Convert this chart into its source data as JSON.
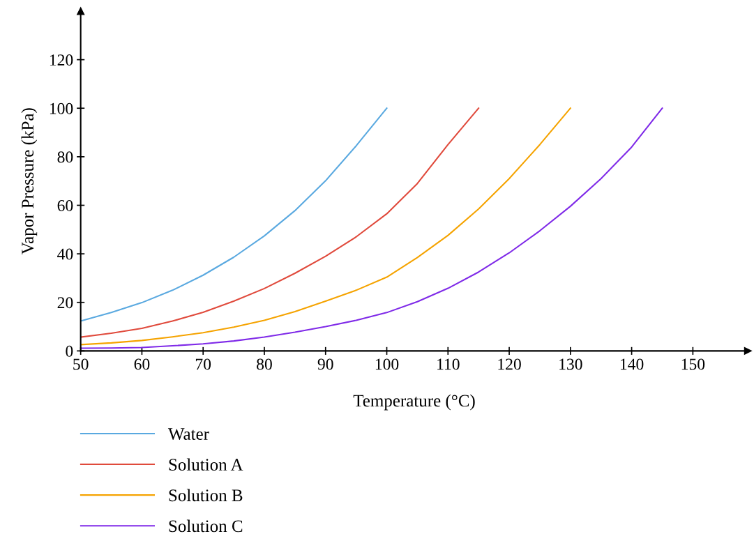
{
  "chart_data": {
    "type": "line",
    "xlabel": "Temperature (°C)",
    "ylabel": "Vapor Pressure (kPa)",
    "xlim": [
      50,
      159
    ],
    "ylim": [
      0,
      140
    ],
    "xticks": [
      50,
      60,
      70,
      80,
      90,
      100,
      110,
      120,
      130,
      140,
      150
    ],
    "yticks": [
      0,
      20,
      40,
      60,
      80,
      100,
      120
    ],
    "grid": false,
    "legend": "bottom",
    "marker": "none",
    "line_style": "solid",
    "series": [
      {
        "name": "Water",
        "color": "#5aa9e0",
        "x": [
          50,
          55,
          60,
          65,
          70,
          75,
          80,
          85,
          90,
          95,
          100
        ],
        "values": [
          12.3,
          15.8,
          19.9,
          25.0,
          31.2,
          38.6,
          47.4,
          57.8,
          70.1,
          84.5,
          100
        ]
      },
      {
        "name": "Solution A",
        "color": "#e04a3c",
        "x": [
          50,
          55,
          60,
          65,
          70,
          75,
          80,
          85,
          90,
          95,
          100,
          105,
          110,
          115
        ],
        "values": [
          5.7,
          7.3,
          9.3,
          12.3,
          15.9,
          20.5,
          25.7,
          32,
          39,
          47,
          56.5,
          69,
          85,
          100
        ]
      },
      {
        "name": "Solution B",
        "color": "#f5a300",
        "x": [
          50,
          55,
          60,
          65,
          70,
          75,
          80,
          85,
          90,
          95,
          100,
          105,
          110,
          115,
          120,
          125,
          130
        ],
        "values": [
          2.6,
          3.3,
          4.3,
          5.8,
          7.5,
          9.8,
          12.6,
          16.2,
          20.5,
          25,
          30.4,
          38.5,
          47.6,
          58.5,
          71,
          85,
          100
        ]
      },
      {
        "name": "Solution C",
        "color": "#7f2ae8",
        "x": [
          50,
          55,
          60,
          65,
          70,
          75,
          80,
          85,
          90,
          95,
          100,
          105,
          110,
          115,
          120,
          125,
          130,
          135,
          140,
          145
        ],
        "values": [
          1.1,
          1.2,
          1.4,
          2.1,
          2.9,
          4.1,
          5.7,
          7.7,
          10,
          12.6,
          15.8,
          20.3,
          25.8,
          32.5,
          40.4,
          49.5,
          59.6,
          71,
          84,
          100
        ]
      }
    ]
  }
}
